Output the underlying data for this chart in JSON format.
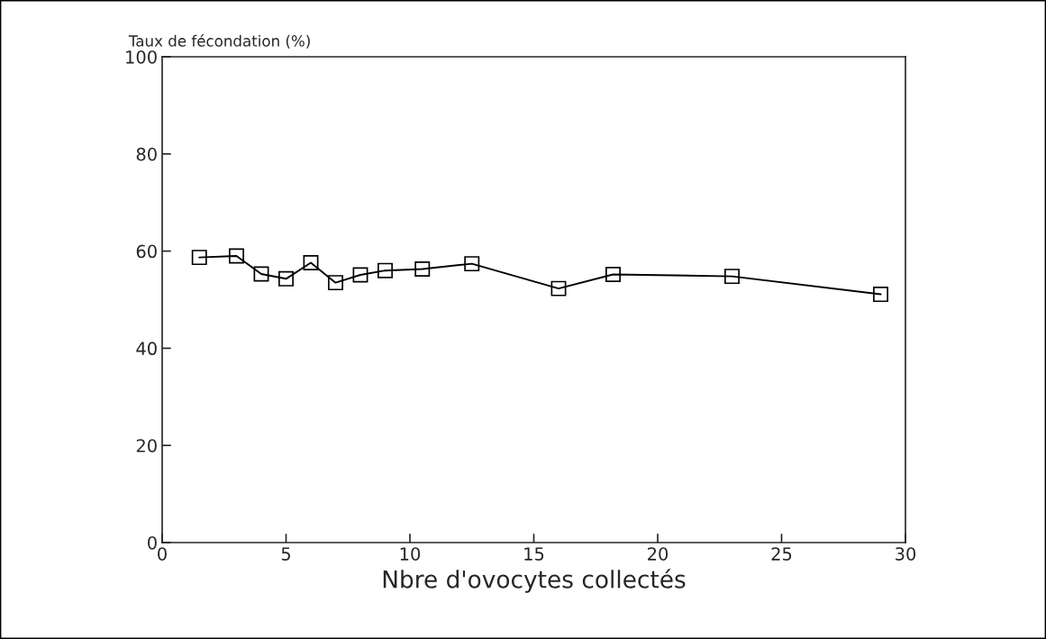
{
  "chart_data": {
    "type": "line",
    "xlabel": "Nbre d'ovocytes collectés",
    "ylabel": "Taux de fécondation (%)",
    "x": [
      1.5,
      3,
      4,
      5,
      6,
      7,
      8,
      9,
      10.5,
      12.5,
      16,
      18.2,
      23,
      29
    ],
    "series": [
      {
        "color": "#000000",
        "values": [
          58.7,
          59.0,
          55.3,
          54.3,
          57.6,
          53.5,
          55.1,
          56.0,
          56.3,
          57.4,
          52.3,
          55.2,
          54.8,
          51.1
        ]
      }
    ],
    "xlim": [
      0,
      30
    ],
    "xticks": [
      0,
      5,
      10,
      15,
      20,
      25,
      30
    ],
    "ylim": [
      0,
      100
    ],
    "yticks": [
      0,
      20,
      40,
      60,
      80,
      100
    ],
    "marker": "square",
    "line_style": "solid",
    "grid": false,
    "legend": false
  }
}
